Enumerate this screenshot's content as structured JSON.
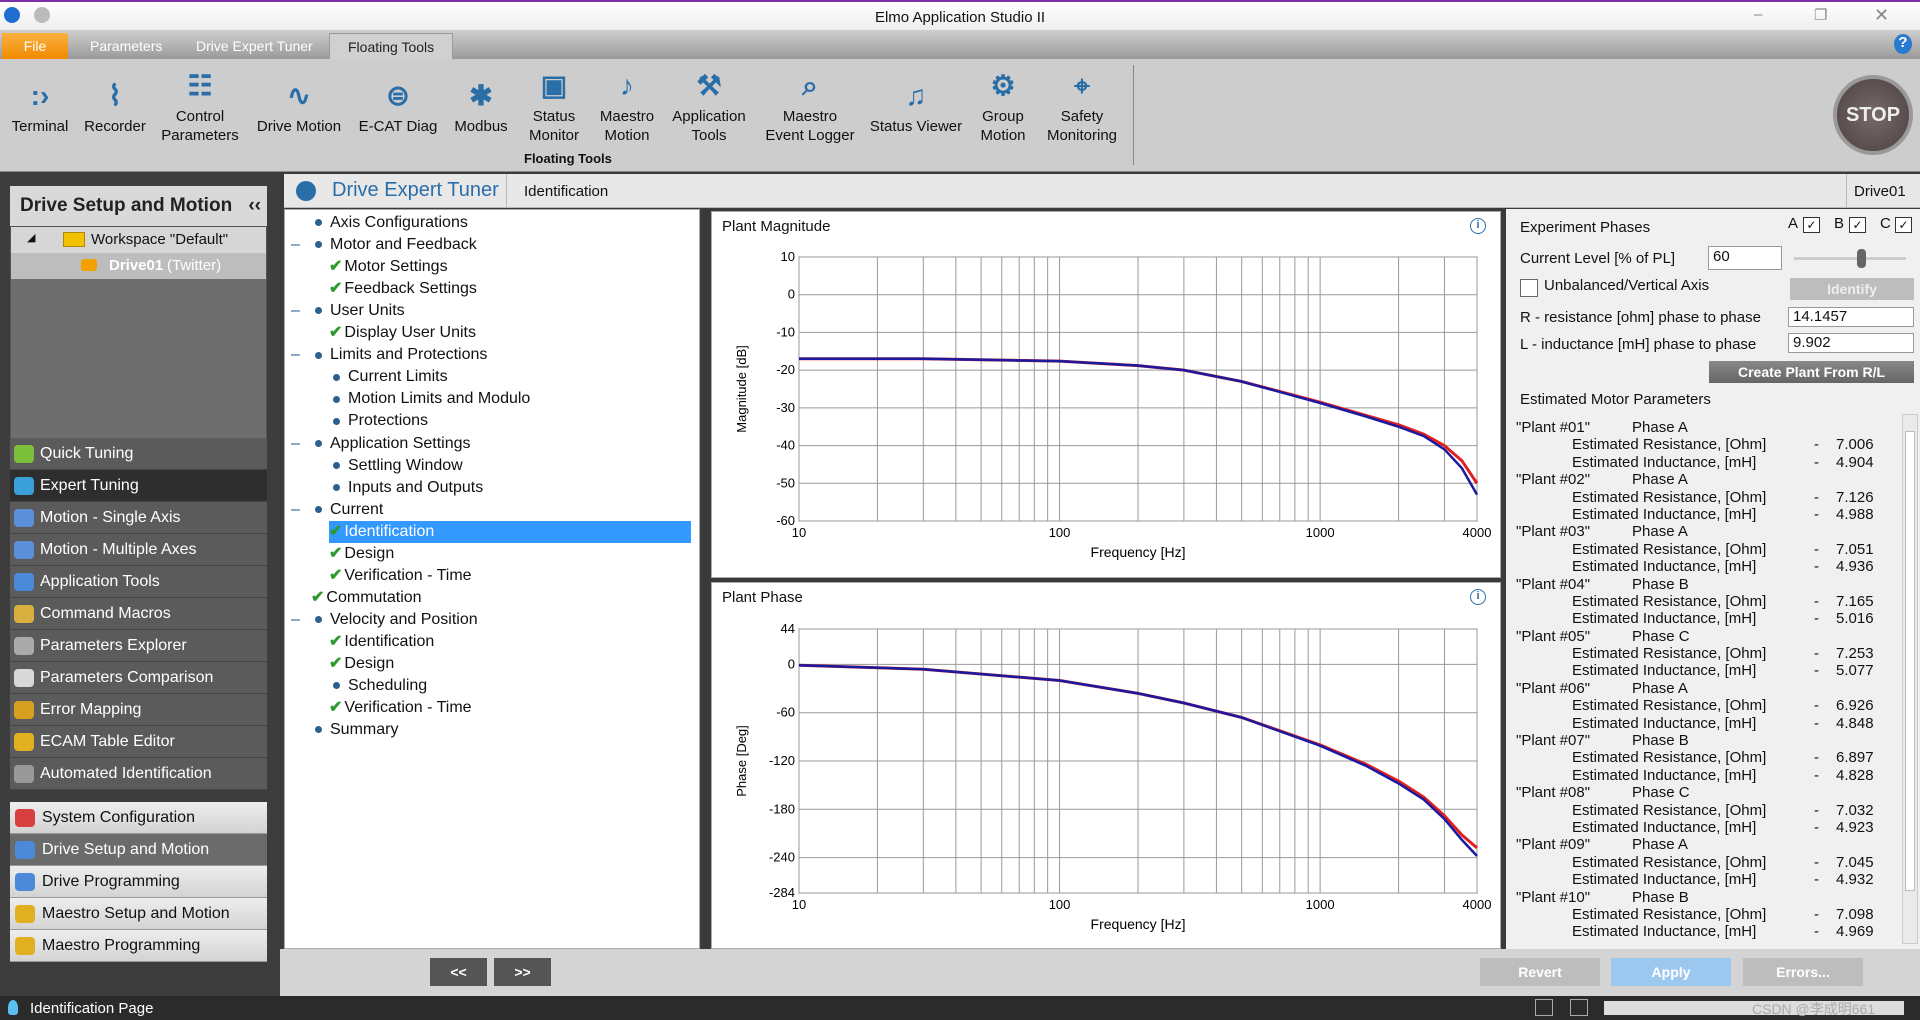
{
  "window": {
    "title": "Elmo Application Studio II"
  },
  "tabs": [
    {
      "label": "File"
    },
    {
      "label": "Parameters"
    },
    {
      "label": "Drive Expert Tuner"
    },
    {
      "label": "Floating Tools"
    }
  ],
  "ribbon": {
    "group_label": "Floating Tools",
    "stop_label": "STOP",
    "items": [
      {
        "label": "Terminal",
        "icon": "terminal-icon"
      },
      {
        "label": "Recorder",
        "icon": "recorder-icon"
      },
      {
        "label": "Control Parameters",
        "icon": "control-parameters-icon"
      },
      {
        "label": "Drive Motion",
        "icon": "drive-motion-icon"
      },
      {
        "label": "E-CAT Diag",
        "icon": "ecat-diag-icon"
      },
      {
        "label": "Modbus",
        "icon": "modbus-icon"
      },
      {
        "label": "Status Monitor",
        "icon": "status-monitor-icon"
      },
      {
        "label": "Maestro Motion",
        "icon": "maestro-motion-icon"
      },
      {
        "label": "Application Tools",
        "icon": "application-tools-icon"
      },
      {
        "label": "Maestro Event Logger",
        "icon": "event-logger-icon"
      },
      {
        "label": "Status Viewer",
        "icon": "status-viewer-icon"
      },
      {
        "label": "Group Motion",
        "icon": "group-motion-icon"
      },
      {
        "label": "Safety Monitoring",
        "icon": "safety-monitoring-icon"
      }
    ]
  },
  "sidebar": {
    "title": "Drive Setup and Motion",
    "workspace": "Workspace \"Default\"",
    "drive": "Drive01",
    "drive_suffix": "(Twitter)",
    "dark_items": [
      "Quick Tuning",
      "Expert Tuning",
      "Motion - Single Axis",
      "Motion - Multiple Axes",
      "Application Tools",
      "Command Macros",
      "Parameters Explorer",
      "Parameters Comparison",
      "Error Mapping",
      "ECAM Table Editor",
      "Automated Identification"
    ],
    "active_dark": "Expert Tuning",
    "categories": [
      "System Configuration",
      "Drive Setup and Motion",
      "Drive Programming",
      "Maestro Setup and Motion",
      "Maestro Programming"
    ]
  },
  "header": {
    "title": "Drive Expert Tuner",
    "page": "Identification",
    "drive": "Drive01"
  },
  "tree": [
    {
      "label": "Axis Configurations",
      "level": 0,
      "mark": "dot"
    },
    {
      "label": "Motor and Feedback",
      "level": 0,
      "mark": "dot",
      "expand": "–"
    },
    {
      "label": "Motor Settings",
      "level": 1,
      "mark": "check"
    },
    {
      "label": "Feedback Settings",
      "level": 1,
      "mark": "check"
    },
    {
      "label": "User Units",
      "level": 0,
      "mark": "dot",
      "expand": "–"
    },
    {
      "label": "Display User Units",
      "level": 1,
      "mark": "check"
    },
    {
      "label": "Limits and Protections",
      "level": 0,
      "mark": "dot",
      "expand": "–"
    },
    {
      "label": "Current Limits",
      "level": 1,
      "mark": "dot"
    },
    {
      "label": "Motion Limits and Modulo",
      "level": 1,
      "mark": "dot"
    },
    {
      "label": "Protections",
      "level": 1,
      "mark": "dot"
    },
    {
      "label": "Application Settings",
      "level": 0,
      "mark": "dot",
      "expand": "–"
    },
    {
      "label": "Settling Window",
      "level": 1,
      "mark": "dot"
    },
    {
      "label": "Inputs and Outputs",
      "level": 1,
      "mark": "dot"
    },
    {
      "label": "Current",
      "level": 0,
      "mark": "dot",
      "expand": "–"
    },
    {
      "label": "Identification",
      "level": 1,
      "mark": "check",
      "selected": true
    },
    {
      "label": "Design",
      "level": 1,
      "mark": "check"
    },
    {
      "label": "Verification - Time",
      "level": 1,
      "mark": "check"
    },
    {
      "label": "Commutation",
      "level": 0,
      "mark": "check"
    },
    {
      "label": "Velocity and Position",
      "level": 0,
      "mark": "dot",
      "expand": "–"
    },
    {
      "label": "Identification",
      "level": 1,
      "mark": "check"
    },
    {
      "label": "Design",
      "level": 1,
      "mark": "check"
    },
    {
      "label": "Scheduling",
      "level": 1,
      "mark": "dot"
    },
    {
      "label": "Verification - Time",
      "level": 1,
      "mark": "check"
    },
    {
      "label": "Summary",
      "level": 0,
      "mark": "dot"
    }
  ],
  "nav": {
    "prev": "<<",
    "next": ">>"
  },
  "chart_data": [
    {
      "type": "line",
      "title": "Plant Magnitude",
      "xlabel": "Frequency [Hz]",
      "ylabel": "Magnitude [dB]",
      "xscale": "log",
      "xlim": [
        10,
        4000
      ],
      "ylim": [
        -60,
        10
      ],
      "xticks": [
        "10",
        "100",
        "1000",
        "4000"
      ],
      "yticks": [
        "10",
        "0",
        "-10",
        "-20",
        "-30",
        "-40",
        "-50",
        "-60"
      ],
      "grid": true,
      "x": [
        10,
        30,
        100,
        200,
        300,
        500,
        1000,
        1500,
        2000,
        2500,
        3000,
        3500,
        4000
      ],
      "series": [
        {
          "color": "#e02020",
          "values": [
            -17,
            -17,
            -17.6,
            -18.8,
            -20,
            -23,
            -28.5,
            -32,
            -34.5,
            -37,
            -40,
            -44,
            -50
          ]
        },
        {
          "color": "#1a1aa0",
          "values": [
            -17,
            -17,
            -17.6,
            -18.8,
            -20,
            -23,
            -28.7,
            -32.3,
            -35,
            -37.5,
            -41,
            -46,
            -53
          ]
        }
      ]
    },
    {
      "type": "line",
      "title": "Plant Phase",
      "xlabel": "Frequency [Hz]",
      "ylabel": "Phase [Deg]",
      "xscale": "log",
      "xlim": [
        10,
        4000
      ],
      "ylim": [
        -284,
        44
      ],
      "xticks": [
        "10",
        "100",
        "1000",
        "4000"
      ],
      "yticks": [
        "44",
        "0",
        "-60",
        "-120",
        "-180",
        "-240",
        "-284"
      ],
      "grid": true,
      "x": [
        10,
        30,
        100,
        200,
        300,
        500,
        1000,
        1500,
        2000,
        2500,
        3000,
        3500,
        4000
      ],
      "series": [
        {
          "color": "#e02020",
          "values": [
            -1,
            -6,
            -20,
            -36,
            -48,
            -66,
            -100,
            -124,
            -145,
            -165,
            -188,
            -212,
            -228
          ]
        },
        {
          "color": "#1a1aa0",
          "values": [
            -1,
            -6,
            -20,
            -36,
            -48,
            -66,
            -101,
            -126,
            -148,
            -168,
            -192,
            -218,
            -238
          ]
        }
      ]
    }
  ],
  "right": {
    "experiment_phases": "Experiment Phases",
    "phases": [
      "A",
      "B",
      "C"
    ],
    "current_level_label": "Current Level [% of PL]",
    "current_level": "60",
    "slider_fraction": 0.6,
    "unbalanced_label": "Unbalanced/Vertical Axis",
    "identify": "Identify",
    "r_label": "R - resistance [ohm] phase to phase",
    "r_value": "14.1457",
    "l_label": "L - inductance [mH] phase to phase",
    "l_value": "9.902",
    "create_plant": "Create Plant From R/L",
    "estimated_title": "Estimated Motor Parameters",
    "res_label": "Estimated Resistance, [Ohm]",
    "ind_label": "Estimated Inductance, [mH]",
    "dash": "-",
    "plants": [
      {
        "name": "\"Plant #01\"",
        "phase": "Phase A",
        "r": "7.006",
        "l": "4.904"
      },
      {
        "name": "\"Plant #02\"",
        "phase": "Phase A",
        "r": "7.126",
        "l": "4.988"
      },
      {
        "name": "\"Plant #03\"",
        "phase": "Phase A",
        "r": "7.051",
        "l": "4.936"
      },
      {
        "name": "\"Plant #04\"",
        "phase": "Phase B",
        "r": "7.165",
        "l": "5.016"
      },
      {
        "name": "\"Plant #05\"",
        "phase": "Phase C",
        "r": "7.253",
        "l": "5.077"
      },
      {
        "name": "\"Plant #06\"",
        "phase": "Phase A",
        "r": "6.926",
        "l": "4.848"
      },
      {
        "name": "\"Plant #07\"",
        "phase": "Phase B",
        "r": "6.897",
        "l": "4.828"
      },
      {
        "name": "\"Plant #08\"",
        "phase": "Phase C",
        "r": "7.032",
        "l": "4.923"
      },
      {
        "name": "\"Plant #09\"",
        "phase": "Phase A",
        "r": "7.045",
        "l": "4.932"
      },
      {
        "name": "\"Plant #10\"",
        "phase": "Phase B",
        "r": "7.098",
        "l": "4.969"
      }
    ]
  },
  "footer": {
    "revert": "Revert",
    "apply": "Apply",
    "errors": "Errors..."
  },
  "status": {
    "text": "Identification Page",
    "watermark": "CSDN @李成明661"
  }
}
